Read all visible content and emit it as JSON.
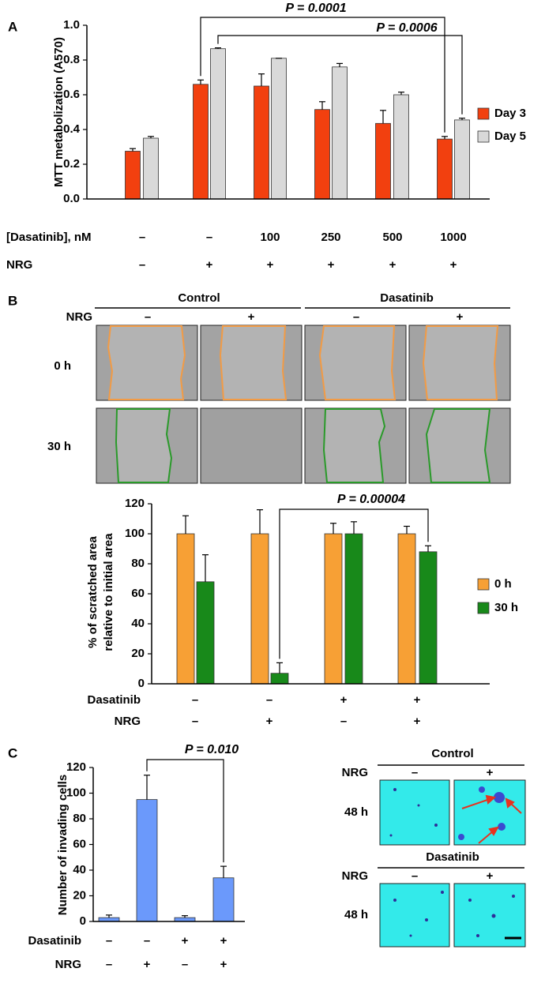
{
  "panel_labels": [
    "A",
    "B",
    "C"
  ],
  "chart_data": [
    {
      "type": "bar",
      "y_label": "MTT metabolization (A570)",
      "ylim": [
        0,
        1
      ],
      "yticks": [
        {
          "value": 0,
          "label": "0.0"
        },
        0.2,
        0.4,
        0.6,
        0.8,
        {
          "value": 1,
          "label": "1.0"
        }
      ],
      "series": [
        {
          "name": "Day 3",
          "color": "#f2400f",
          "values": [
            0.275,
            0.66,
            0.65,
            0.515,
            0.435,
            0.345
          ],
          "errors": [
            0.015,
            0.025,
            0.07,
            0.045,
            0.075,
            0.015
          ]
        },
        {
          "name": "Day 5",
          "color": "#d9d9d9",
          "values": [
            0.35,
            0.865,
            0.81,
            0.76,
            0.6,
            0.455
          ],
          "errors": [
            0.01,
            0.005,
            0,
            0.02,
            0.015,
            0.01
          ]
        }
      ],
      "conditions": [
        {
          "name": "[Dasatinib], nM",
          "labels": [
            "–",
            "–",
            "100",
            "250",
            "500",
            "1000"
          ]
        },
        {
          "name": "NRG",
          "labels": [
            "–",
            "+",
            "+",
            "+",
            "+",
            "+"
          ]
        }
      ],
      "annotations": [
        "P = 0.0001",
        "P = 0.0006"
      ]
    },
    {
      "type": "bar",
      "y_label": [
        "% of scratched area",
        "relative to initial area"
      ],
      "ylim": [
        0,
        120
      ],
      "yticks": [
        0,
        20,
        40,
        60,
        80,
        100,
        120
      ],
      "series": [
        {
          "name": "0 h",
          "color": "#f7a035",
          "values": [
            100,
            100,
            100,
            100
          ],
          "errors": [
            12,
            16,
            7,
            5
          ]
        },
        {
          "name": "30 h",
          "color": "#18891a",
          "values": [
            68,
            7,
            100,
            88
          ],
          "errors": [
            18,
            7,
            8,
            4
          ]
        }
      ],
      "conditions": [
        {
          "name": "Dasatinib",
          "labels": [
            "–",
            "–",
            "+",
            "+"
          ]
        },
        {
          "name": "NRG",
          "labels": [
            "–",
            "+",
            "–",
            "+"
          ]
        }
      ],
      "annotations": [
        "P = 0.00004"
      ]
    },
    {
      "type": "bar",
      "y_label": "Number of invading cells",
      "ylim": [
        0,
        120
      ],
      "yticks": [
        0,
        20,
        40,
        60,
        80,
        100,
        120
      ],
      "series": [
        {
          "color": "#6b99fb",
          "values": [
            3,
            95,
            3,
            34
          ],
          "errors": [
            2,
            19,
            1.5,
            9
          ]
        }
      ],
      "conditions": [
        {
          "name": "Dasatinib",
          "labels": [
            "–",
            "–",
            "+",
            "+"
          ]
        },
        {
          "name": "NRG",
          "labels": [
            "–",
            "+",
            "–",
            "+"
          ]
        }
      ],
      "annotations": [
        "P = 0.010"
      ]
    }
  ],
  "micrographs": {
    "scratch": {
      "groups": [
        "Control",
        "Dasatinib"
      ],
      "nrg_label": "NRG",
      "nrg": [
        "–",
        "+",
        "–",
        "+"
      ],
      "rows": [
        "0 h",
        "30 h"
      ]
    },
    "invasion": [
      {
        "title": "Control",
        "nrg_label": "NRG",
        "nrg": [
          "–",
          "+"
        ],
        "row": "48 h"
      },
      {
        "title": "Dasatinib",
        "nrg_label": "NRG",
        "nrg": [
          "–",
          "+"
        ],
        "row": "48 h"
      }
    ]
  }
}
